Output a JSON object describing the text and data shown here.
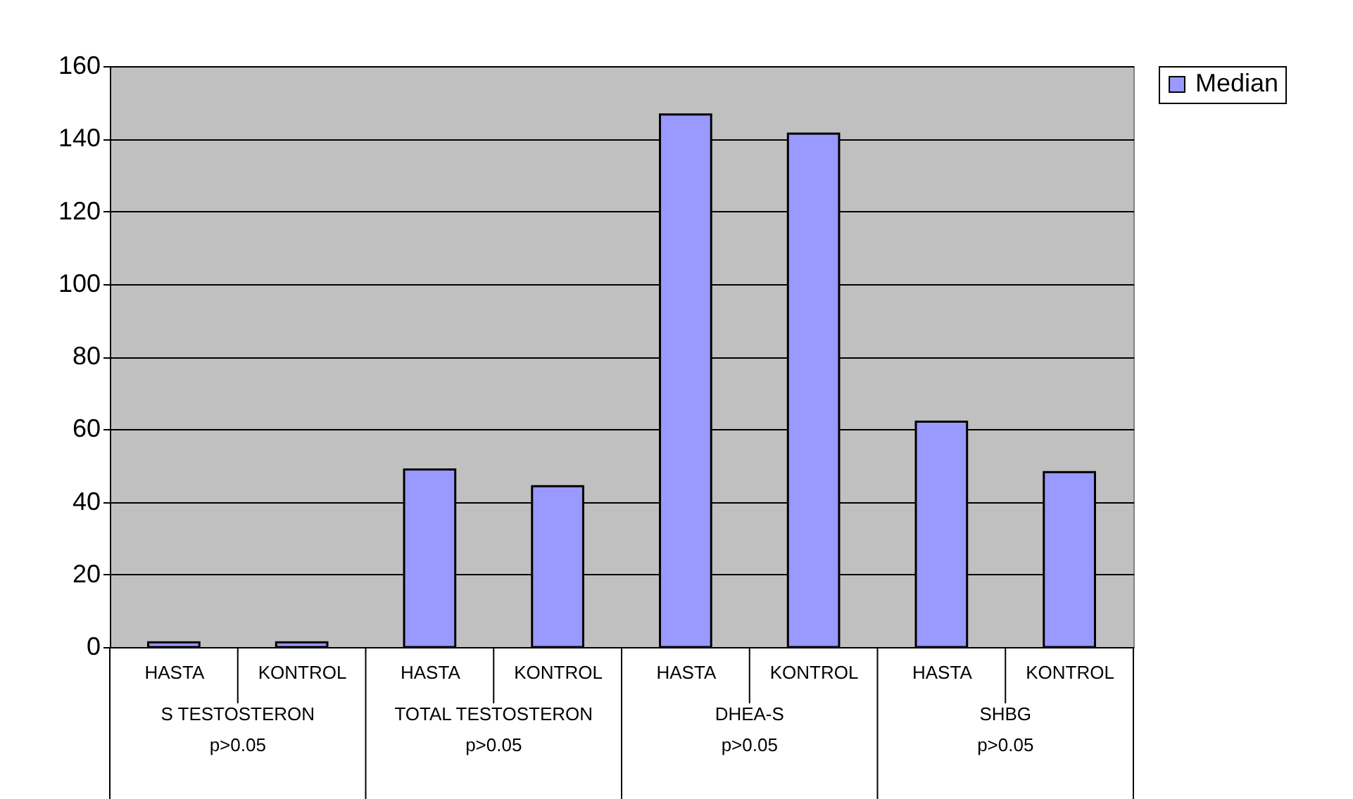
{
  "chart_data": {
    "type": "bar",
    "categories": [
      "HASTA",
      "KONTROL",
      "HASTA",
      "KONTROL",
      "HASTA",
      "KONTROL",
      "HASTA",
      "KONTROL"
    ],
    "series": [
      {
        "name": "Median",
        "color": "#9999ff",
        "values": [
          1.3,
          1.3,
          48.9,
          44.3,
          146.7,
          141.4,
          62.1,
          48.2
        ]
      }
    ],
    "ylim": [
      0,
      160
    ],
    "yticks": [
      0,
      20,
      40,
      60,
      80,
      100,
      120,
      140,
      160
    ],
    "grid": "y",
    "legend": "right",
    "annotations": [
      "S TESTOSTERON\np>0.05",
      "TOTAL TESTOSTERON\np>0.05",
      "DHEA-S\np>0.05",
      "SHBG\np>0.05"
    ]
  }
}
